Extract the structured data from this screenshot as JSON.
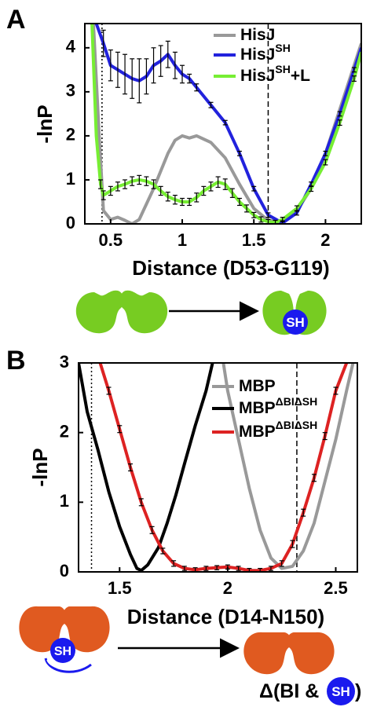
{
  "chart_data": [
    {
      "type": "line",
      "panel": "A",
      "xlabel": "Distance (D53-G119)",
      "ylabel": "-lnP",
      "xlim": [
        0.32,
        2.25
      ],
      "ylim": [
        0,
        4.55
      ],
      "xticks": [
        0.5,
        1,
        1.5,
        2
      ],
      "yticks": [
        0,
        1,
        2,
        3,
        4
      ],
      "vlines": [
        {
          "x": 0.44,
          "style": "dotted"
        },
        {
          "x": 1.6,
          "style": "dashed"
        }
      ],
      "series": [
        {
          "name": "HisJ",
          "color": "#999999",
          "x": [
            0.38,
            0.42,
            0.45,
            0.5,
            0.55,
            0.6,
            0.65,
            0.7,
            0.8,
            0.9,
            0.95,
            1.0,
            1.05,
            1.1,
            1.2,
            1.3,
            1.4,
            1.5,
            1.6,
            1.7,
            1.8,
            1.9,
            2.0,
            2.1,
            2.2,
            2.25
          ],
          "values": [
            4.55,
            2.0,
            0.3,
            0.1,
            0.15,
            0.08,
            0.0,
            0.1,
            0.8,
            1.6,
            1.9,
            2.0,
            1.95,
            2.0,
            1.85,
            1.5,
            0.9,
            0.35,
            0.08,
            0.05,
            0.3,
            0.8,
            1.6,
            2.6,
            3.6,
            4.1
          ]
        },
        {
          "name": "HisJ",
          "sup": "SH",
          "color": "#2222dd",
          "x": [
            0.4,
            0.45,
            0.5,
            0.55,
            0.6,
            0.65,
            0.7,
            0.75,
            0.8,
            0.85,
            0.9,
            0.95,
            1.0,
            1.05,
            1.1,
            1.2,
            1.3,
            1.4,
            1.5,
            1.6,
            1.7,
            1.8,
            1.9,
            2.0,
            2.1,
            2.2,
            2.25
          ],
          "values": [
            4.55,
            4.1,
            3.6,
            3.5,
            3.4,
            3.3,
            3.25,
            3.35,
            3.6,
            3.7,
            3.85,
            3.6,
            3.4,
            3.3,
            3.1,
            2.7,
            2.3,
            1.6,
            0.8,
            0.2,
            0.02,
            0.25,
            0.9,
            1.6,
            2.5,
            3.5,
            4.0
          ],
          "errors": [
            0.0,
            0.3,
            0.35,
            0.4,
            0.45,
            0.45,
            0.5,
            0.4,
            0.4,
            0.35,
            0.3,
            0.3,
            0.2,
            0.1,
            0.08,
            0.06,
            0.05,
            0.05,
            0.05,
            0.05,
            0.05,
            0.05,
            0.05,
            0.05,
            0.05,
            0.05,
            0.0
          ]
        },
        {
          "name": "HisJ",
          "sup": "SH",
          "suffix": "+L",
          "color": "#77ee33",
          "x": [
            0.37,
            0.4,
            0.43,
            0.45,
            0.5,
            0.55,
            0.6,
            0.65,
            0.7,
            0.75,
            0.8,
            0.85,
            0.9,
            0.95,
            1.0,
            1.05,
            1.1,
            1.15,
            1.2,
            1.25,
            1.3,
            1.35,
            1.4,
            1.45,
            1.5,
            1.55,
            1.6,
            1.65,
            1.7,
            1.8,
            1.9,
            2.0,
            2.1,
            2.2,
            2.25
          ],
          "values": [
            4.55,
            2.0,
            0.9,
            0.65,
            0.75,
            0.85,
            0.9,
            0.97,
            1.0,
            0.97,
            0.9,
            0.75,
            0.62,
            0.55,
            0.5,
            0.5,
            0.6,
            0.75,
            0.85,
            0.95,
            0.9,
            0.7,
            0.5,
            0.35,
            0.2,
            0.1,
            0.05,
            0.03,
            0.1,
            0.35,
            0.8,
            1.4,
            2.3,
            3.3,
            3.9
          ],
          "errors": [
            0.0,
            0.0,
            0.1,
            0.1,
            0.1,
            0.1,
            0.1,
            0.1,
            0.1,
            0.1,
            0.1,
            0.1,
            0.1,
            0.1,
            0.08,
            0.08,
            0.1,
            0.1,
            0.1,
            0.12,
            0.12,
            0.1,
            0.08,
            0.08,
            0.06,
            0.06,
            0.05,
            0.05,
            0.05,
            0.06,
            0.06,
            0.06,
            0.06,
            0.06,
            0.0
          ]
        }
      ]
    },
    {
      "type": "line",
      "panel": "B",
      "xlabel": "Distance (D14-N150)",
      "ylabel": "-lnP",
      "xlim": [
        1.31,
        2.6
      ],
      "ylim": [
        0,
        3
      ],
      "xticks": [
        1.5,
        2,
        2.5
      ],
      "yticks": [
        0,
        1,
        2,
        3
      ],
      "vlines": [
        {
          "x": 1.37,
          "style": "dotted"
        },
        {
          "x": 2.32,
          "style": "dashed"
        }
      ],
      "series": [
        {
          "name": "MBP",
          "color": "#999999",
          "x": [
            1.98,
            2.0,
            2.05,
            2.1,
            2.15,
            2.2,
            2.25,
            2.3,
            2.35,
            2.4,
            2.45,
            2.5,
            2.55,
            2.58
          ],
          "values": [
            3.0,
            2.6,
            1.9,
            1.2,
            0.6,
            0.2,
            0.05,
            0.08,
            0.3,
            0.7,
            1.3,
            1.9,
            2.6,
            3.0
          ]
        },
        {
          "name": "MBP",
          "sup": "ΔBIΔSH",
          "color": "#000000",
          "x": [
            1.31,
            1.35,
            1.4,
            1.45,
            1.5,
            1.55,
            1.58,
            1.6,
            1.63,
            1.68,
            1.72,
            1.76,
            1.8,
            1.85,
            1.9,
            1.93
          ],
          "values": [
            3.0,
            2.3,
            1.75,
            1.15,
            0.65,
            0.25,
            0.05,
            0.02,
            0.1,
            0.35,
            0.7,
            1.1,
            1.55,
            2.1,
            2.6,
            3.0
          ]
        },
        {
          "name": "MBP",
          "sup": "ΔBIΔSH",
          "color": "#dd2222",
          "x": [
            1.41,
            1.45,
            1.5,
            1.55,
            1.6,
            1.65,
            1.7,
            1.75,
            1.8,
            1.85,
            1.9,
            1.95,
            2.0,
            2.05,
            2.1,
            2.15,
            2.2,
            2.25,
            2.3,
            2.35,
            2.4,
            2.45,
            2.5,
            2.55
          ],
          "values": [
            3.0,
            2.6,
            2.05,
            1.5,
            1.0,
            0.6,
            0.3,
            0.12,
            0.05,
            0.03,
            0.05,
            0.06,
            0.07,
            0.05,
            0.02,
            0.02,
            0.05,
            0.12,
            0.4,
            0.85,
            1.35,
            1.95,
            2.6,
            3.0
          ],
          "errors": [
            0.0,
            0.05,
            0.05,
            0.05,
            0.05,
            0.05,
            0.04,
            0.04,
            0.03,
            0.03,
            0.03,
            0.03,
            0.03,
            0.03,
            0.03,
            0.03,
            0.03,
            0.04,
            0.05,
            0.05,
            0.05,
            0.05,
            0.05,
            0.0
          ]
        }
      ]
    }
  ],
  "diagrams": {
    "a_label": "SH",
    "b_left_label": "SH",
    "b_caption": "Δ(BI &",
    "b_caption_circle": "SH",
    "b_caption_end": ")"
  }
}
